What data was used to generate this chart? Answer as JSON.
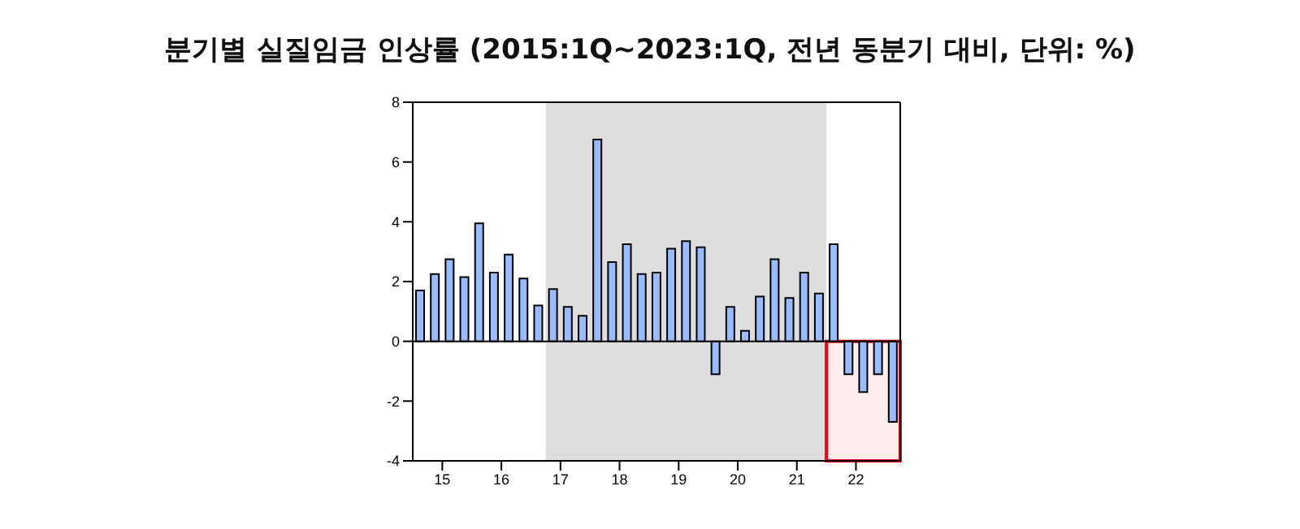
{
  "chart_data": {
    "type": "bar",
    "title": "분기별 실질임금 인상률 (2015:1Q~2023:1Q, 전년 동분기 대비, 단위: %)",
    "x": [
      14.625,
      14.875,
      15.125,
      15.375,
      15.625,
      15.875,
      16.125,
      16.375,
      16.625,
      16.875,
      17.125,
      17.375,
      17.625,
      17.875,
      18.125,
      18.375,
      18.625,
      18.875,
      19.125,
      19.375,
      19.625,
      19.875,
      20.125,
      20.375,
      20.625,
      20.875,
      21.125,
      21.375,
      21.625,
      21.875,
      22.125,
      22.375,
      22.625
    ],
    "values": [
      1.7,
      2.25,
      2.75,
      2.15,
      3.95,
      2.3,
      2.9,
      2.1,
      1.2,
      1.75,
      1.15,
      0.85,
      6.75,
      2.65,
      3.25,
      2.25,
      2.3,
      3.1,
      3.35,
      3.15,
      -1.1,
      1.15,
      0.35,
      1.5,
      2.75,
      1.45,
      2.3,
      1.6,
      3.25,
      -1.1,
      -1.7,
      -1.1,
      -2.7
    ],
    "color": "#99bbff",
    "xlim": [
      14.5,
      22.75
    ],
    "xticks": [
      15,
      16,
      17,
      18,
      19,
      20,
      21,
      22
    ],
    "ylim": [
      -4,
      8
    ],
    "yticks": [
      -4,
      -2,
      0,
      2,
      4,
      6,
      8
    ],
    "bands": [
      {
        "axis": "x",
        "from": 16.75,
        "to": 21.5,
        "color": "#dedede"
      },
      {
        "axis": "x",
        "from": 21.5,
        "to": 22.75,
        "color": "#ff0000"
      }
    ],
    "ref_lines": [
      {
        "axis": "y",
        "value": 0,
        "color": "#000000"
      }
    ],
    "grid": false,
    "legend": false
  }
}
